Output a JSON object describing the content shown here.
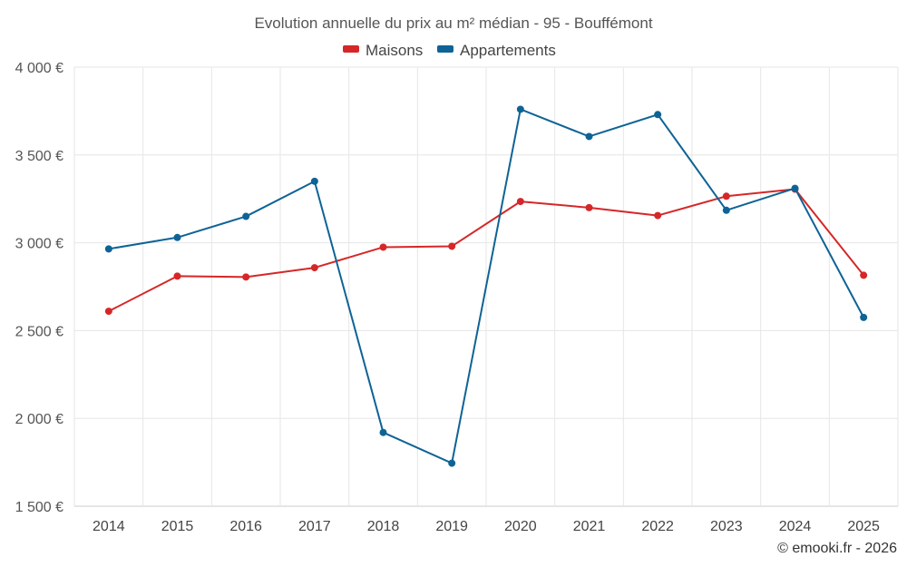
{
  "chart_data": {
    "type": "line",
    "title": "Evolution annuelle du prix au m² médian - 95 - Bouffémont",
    "categories": [
      "2014",
      "2015",
      "2016",
      "2017",
      "2018",
      "2019",
      "2020",
      "2021",
      "2022",
      "2023",
      "2024",
      "2025"
    ],
    "series": [
      {
        "name": "Maisons",
        "color": "#d62728",
        "values": [
          2610,
          2810,
          2805,
          2858,
          2975,
          2980,
          3235,
          3200,
          3155,
          3265,
          3305,
          2815
        ]
      },
      {
        "name": "Appartements",
        "color": "#0e6396",
        "values": [
          2965,
          3030,
          3150,
          3350,
          1920,
          1745,
          3760,
          3605,
          3730,
          3185,
          3310,
          2575
        ]
      }
    ],
    "y_ticks": [
      {
        "value": 1500,
        "label": "1 500 €"
      },
      {
        "value": 2000,
        "label": "2 000 €"
      },
      {
        "value": 2500,
        "label": "2 500 €"
      },
      {
        "value": 3000,
        "label": "3 000 €"
      },
      {
        "value": 3500,
        "label": "3 500 €"
      },
      {
        "value": 4000,
        "label": "4 000 €"
      }
    ],
    "ylim": [
      1500,
      4000
    ],
    "xlabel": "",
    "ylabel": "",
    "grid": true,
    "legend_position": "top-center"
  },
  "credit": "© emooki.fr - 2026"
}
